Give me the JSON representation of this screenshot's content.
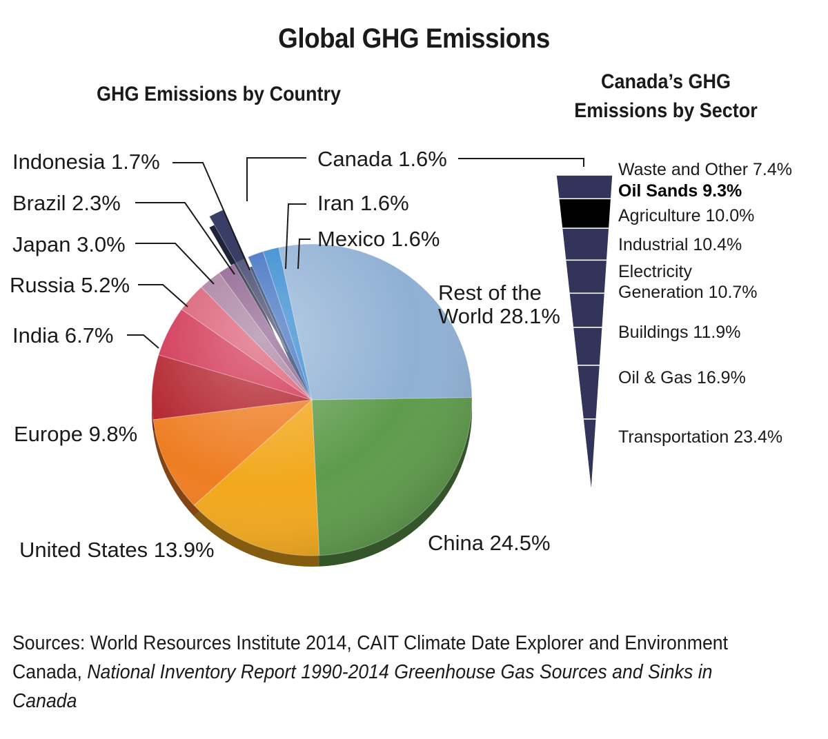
{
  "title": "Global GHG Emissions",
  "chart_data": [
    {
      "type": "pie",
      "title": "GHG Emissions by Country",
      "unit": "%",
      "slices": [
        {
          "label": "Rest of the World",
          "display": [
            "Rest of the",
            "World 28.1%"
          ],
          "value": 28.1,
          "color": "#8fb0d4"
        },
        {
          "label": "China",
          "display": [
            "China 24.5%"
          ],
          "value": 24.5,
          "color": "#5e9b4c"
        },
        {
          "label": "United States",
          "display": [
            "United States 13.9%"
          ],
          "value": 13.9,
          "color": "#f2a81c"
        },
        {
          "label": "Europe",
          "display": [
            "Europe 9.8%"
          ],
          "value": 9.8,
          "color": "#ee7d22"
        },
        {
          "label": "India",
          "display": [
            "India 6.7%"
          ],
          "value": 6.7,
          "color": "#b2202a"
        },
        {
          "label": "Russia",
          "display": [
            "Russia 5.2%"
          ],
          "value": 5.2,
          "color": "#d02e4e"
        },
        {
          "label": "Japan",
          "display": [
            "Japan 3.0%"
          ],
          "value": 3.0,
          "color": "#d9576f"
        },
        {
          "label": "Brazil",
          "display": [
            "Brazil 2.3%"
          ],
          "value": 2.3,
          "color": "#a47a9c"
        },
        {
          "label": "Indonesia",
          "display": [
            "Indonesia 1.7%"
          ],
          "value": 1.7,
          "color": "#8a5a8a"
        },
        {
          "label": "Canada",
          "display": [
            "Canada 1.6%"
          ],
          "value": 1.6,
          "color": "#3a3d66",
          "exploded": true
        },
        {
          "label": "Iran",
          "display": [
            "Iran 1.6%"
          ],
          "value": 1.6,
          "color": "#3a6cbf"
        },
        {
          "label": "Mexico",
          "display": [
            "Mexico 1.6%"
          ],
          "value": 1.6,
          "color": "#2f86cf"
        }
      ]
    },
    {
      "type": "bar",
      "title": "Canada’s GHG Emissions by Sector",
      "unit": "%",
      "color": "#32345a",
      "highlight_color": "#000000",
      "segments": [
        {
          "label": "Waste and Other",
          "display": [
            "Waste and Other 7.4%"
          ],
          "value": 7.4
        },
        {
          "label": "Oil Sands",
          "display": [
            "Oil Sands 9.3%"
          ],
          "value": 9.3,
          "highlight": true
        },
        {
          "label": "Agriculture",
          "display": [
            "Agriculture 10.0%"
          ],
          "value": 10.0
        },
        {
          "label": "Industrial",
          "display": [
            "Industrial 10.4%"
          ],
          "value": 10.4
        },
        {
          "label": "Electricity Generation",
          "display": [
            "Electricity",
            "Generation 10.7%"
          ],
          "value": 10.7
        },
        {
          "label": "Buildings",
          "display": [
            "Buildings 11.9%"
          ],
          "value": 11.9
        },
        {
          "label": "Oil & Gas",
          "display": [
            "Oil & Gas 16.9%"
          ],
          "value": 16.9
        },
        {
          "label": "Transportation",
          "display": [
            "Transportation 23.4%"
          ],
          "value": 23.4
        }
      ]
    }
  ],
  "sources": {
    "prefix": "Sources: World Resources Institute 2014, CAIT Climate Date Explorer and Environment Canada, ",
    "italic": "National Inventory Report 1990-2014 Greenhouse Gas Sources and Sinks in Canada"
  }
}
